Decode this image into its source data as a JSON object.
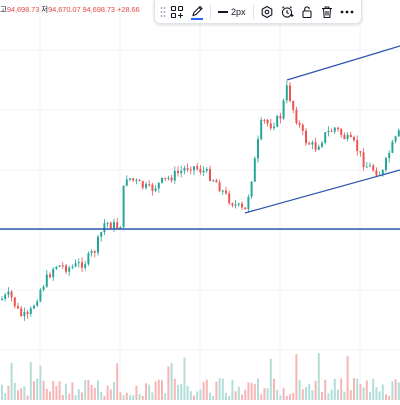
{
  "legend": {
    "low_label": "고",
    "low_value": "94,698.73",
    "close_label": "저",
    "close_value": "94,670.07",
    "last_value": "94,698.73",
    "change": "+28.66"
  },
  "toolbar": {
    "icons": [
      "drag-handle-icon",
      "template-icon",
      "pencil-color-icon",
      "line-width-icon",
      "settings-icon",
      "alert-icon",
      "lock-icon",
      "delete-icon",
      "more-icon"
    ],
    "line_width_label": "2px",
    "line_color": "#2962ff"
  },
  "colors": {
    "up": "#26a69a",
    "down": "#ef5350",
    "drawing": "#2f56b0",
    "grid": "#f0f3fa"
  }
}
